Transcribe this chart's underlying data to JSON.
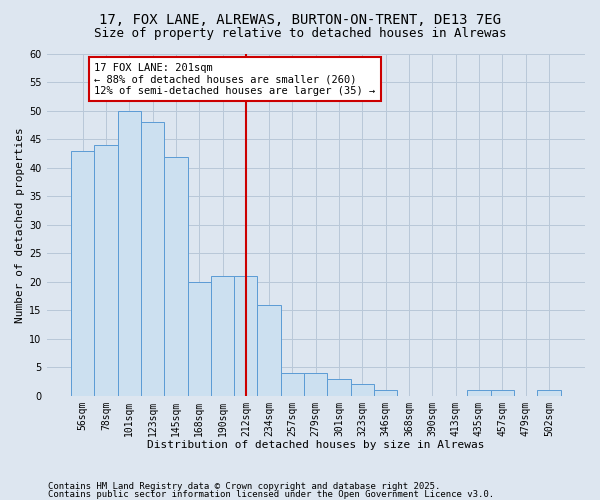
{
  "title1": "17, FOX LANE, ALREWAS, BURTON-ON-TRENT, DE13 7EG",
  "title2": "Size of property relative to detached houses in Alrewas",
  "xlabel": "Distribution of detached houses by size in Alrewas",
  "ylabel": "Number of detached properties",
  "categories": [
    "56sqm",
    "78sqm",
    "101sqm",
    "123sqm",
    "145sqm",
    "168sqm",
    "190sqm",
    "212sqm",
    "234sqm",
    "257sqm",
    "279sqm",
    "301sqm",
    "323sqm",
    "346sqm",
    "368sqm",
    "390sqm",
    "413sqm",
    "435sqm",
    "457sqm",
    "479sqm",
    "502sqm"
  ],
  "values": [
    43,
    44,
    50,
    48,
    42,
    20,
    21,
    21,
    16,
    4,
    4,
    3,
    2,
    1,
    0,
    0,
    0,
    1,
    1,
    0,
    1
  ],
  "bar_color": "#cce0f0",
  "bar_edge_color": "#5b9bd5",
  "bar_width": 1.0,
  "ylim": [
    0,
    60
  ],
  "yticks": [
    0,
    5,
    10,
    15,
    20,
    25,
    30,
    35,
    40,
    45,
    50,
    55,
    60
  ],
  "grid_color": "#b8c8d8",
  "bg_color": "#dde6f0",
  "annotation_line1": "17 FOX LANE: 201sqm",
  "annotation_line2": "← 88% of detached houses are smaller (260)",
  "annotation_line3": "12% of semi-detached houses are larger (35) →",
  "annotation_box_color": "#ffffff",
  "annotation_box_edge": "#cc0000",
  "vline_color": "#cc0000",
  "footer1": "Contains HM Land Registry data © Crown copyright and database right 2025.",
  "footer2": "Contains public sector information licensed under the Open Government Licence v3.0.",
  "title_fontsize": 10,
  "subtitle_fontsize": 9,
  "axis_label_fontsize": 8,
  "tick_fontsize": 7,
  "annotation_fontsize": 7.5,
  "footer_fontsize": 6.5
}
